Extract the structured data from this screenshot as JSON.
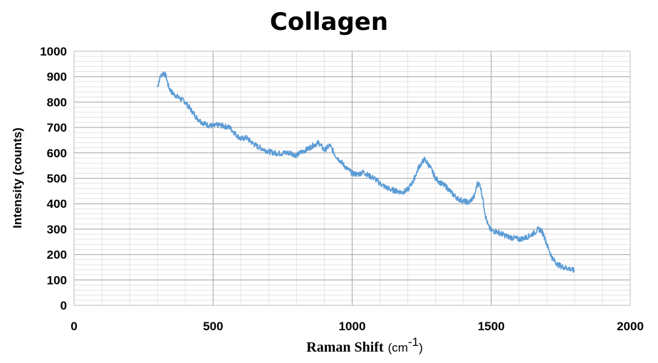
{
  "chart_data": {
    "type": "line",
    "title": "Collagen",
    "xlabel": "Raman Shift",
    "xlabel_unit": "(cm",
    "xlabel_unit_sup": "-1",
    "xlabel_unit_close": ")",
    "ylabel": "Intensity (counts)",
    "xlim": [
      0,
      2000
    ],
    "ylim": [
      0,
      1000
    ],
    "xticks": [
      "0",
      "500",
      "1000",
      "1500",
      "2000"
    ],
    "yticks": [
      "0",
      "100",
      "200",
      "300",
      "400",
      "500",
      "600",
      "700",
      "800",
      "900",
      "1000"
    ],
    "grid": true,
    "legend": "none",
    "series_color": "#5b9bd5",
    "series": [
      {
        "x": [
          300,
          310,
          320,
          330,
          340,
          350,
          360,
          380,
          400,
          420,
          440,
          460,
          480,
          500,
          520,
          540,
          560,
          580,
          600,
          620,
          640,
          660,
          680,
          700,
          720,
          740,
          760,
          780,
          800,
          820,
          840,
          860,
          880,
          900,
          920,
          940,
          960,
          980,
          1000,
          1020,
          1040,
          1060,
          1080,
          1100,
          1120,
          1140,
          1160,
          1180,
          1200,
          1220,
          1240,
          1260,
          1280,
          1300,
          1320,
          1340,
          1360,
          1380,
          1400,
          1420,
          1440,
          1450,
          1460,
          1470,
          1480,
          1490,
          1500,
          1520,
          1540,
          1560,
          1580,
          1600,
          1620,
          1640,
          1660,
          1670,
          1680,
          1690,
          1700,
          1720,
          1740,
          1760,
          1780,
          1800
        ],
        "values": [
          860,
          900,
          915,
          905,
          860,
          840,
          830,
          815,
          800,
          770,
          740,
          720,
          710,
          705,
          710,
          705,
          700,
          675,
          655,
          660,
          640,
          625,
          615,
          605,
          600,
          598,
          600,
          600,
          590,
          605,
          615,
          630,
          640,
          610,
          630,
          590,
          565,
          540,
          520,
          515,
          525,
          510,
          500,
          480,
          465,
          455,
          450,
          445,
          455,
          490,
          545,
          575,
          545,
          500,
          480,
          465,
          440,
          420,
          410,
          405,
          430,
          480,
          475,
          420,
          350,
          310,
          295,
          290,
          280,
          270,
          265,
          260,
          265,
          275,
          290,
          300,
          295,
          275,
          240,
          185,
          160,
          150,
          145,
          135
        ]
      }
    ]
  }
}
